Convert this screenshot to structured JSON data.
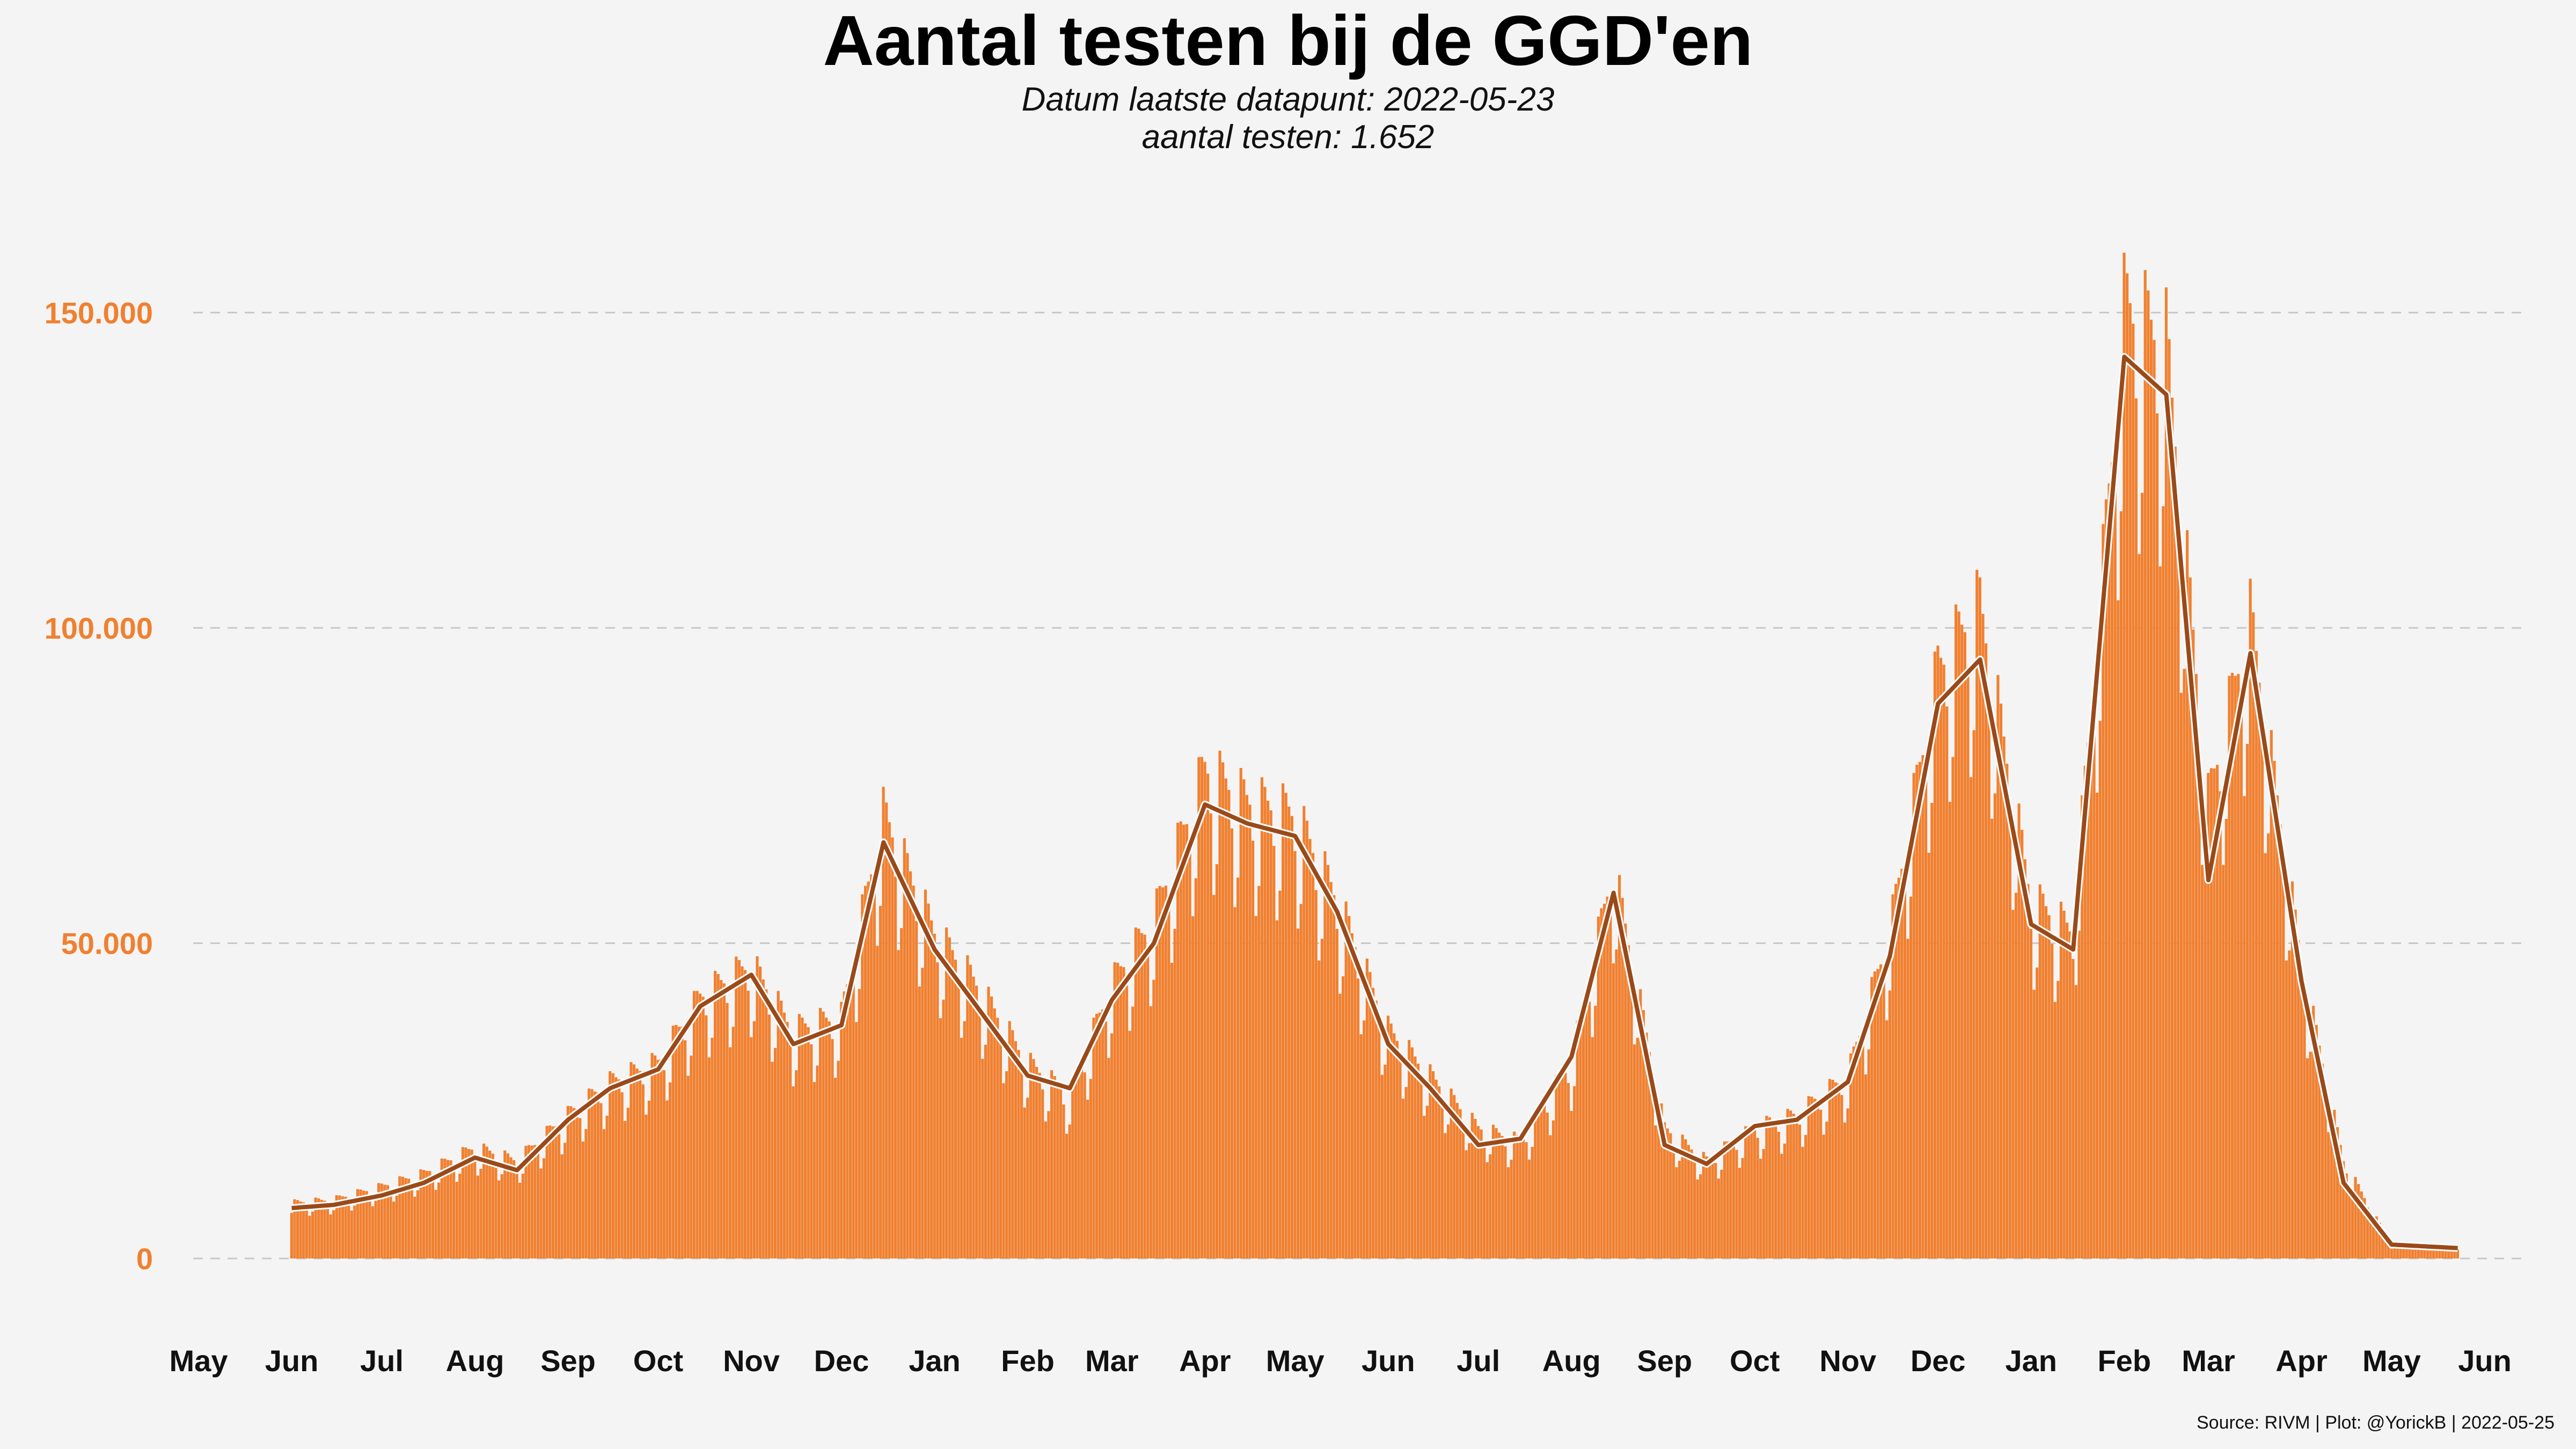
{
  "chart_data": {
    "type": "bar",
    "title": "Aantal testen bij de GGD'en",
    "subtitle_line1": "Datum laatste datapunt: 2022-05-23",
    "subtitle_line2": "aantal testen: 1.652",
    "caption": "Source: RIVM | Plot: @YorickB |  2022-05-25",
    "xlabel": "",
    "ylabel": "",
    "ylim": [
      0,
      160000
    ],
    "xlim": [
      "2020-05-01",
      "2022-06-01"
    ],
    "x_ticks": [
      "May",
      "Jun",
      "Jul",
      "Aug",
      "Sep",
      "Oct",
      "Nov",
      "Dec",
      "Jan",
      "Feb",
      "Mar",
      "Apr",
      "May",
      "Jun",
      "Jul",
      "Aug",
      "Sep",
      "Oct",
      "Nov",
      "Dec",
      "Jan",
      "Feb",
      "Mar",
      "Apr",
      "May",
      "Jun"
    ],
    "y_ticks": [
      "0",
      "50.000",
      "100.000",
      "150.000"
    ],
    "grid": true,
    "legend": "none",
    "bar_color": "#f08030",
    "line_color": "#9a4a1a",
    "series": [
      {
        "kind": "bars",
        "dates": [
          "2020-06-01",
          "2020-06-15",
          "2020-07-01",
          "2020-07-15",
          "2020-08-01",
          "2020-08-15",
          "2020-09-01",
          "2020-09-15",
          "2020-10-01",
          "2020-10-15",
          "2020-11-01",
          "2020-11-15",
          "2020-12-01",
          "2020-12-15",
          "2021-01-01",
          "2021-01-15",
          "2021-02-01",
          "2021-02-15",
          "2021-03-01",
          "2021-03-15",
          "2021-04-01",
          "2021-04-15",
          "2021-05-01",
          "2021-05-15",
          "2021-06-01",
          "2021-06-15",
          "2021-07-01",
          "2021-07-15",
          "2021-08-01",
          "2021-08-15",
          "2021-09-01",
          "2021-09-15",
          "2021-10-01",
          "2021-10-15",
          "2021-11-01",
          "2021-11-15",
          "2021-12-01",
          "2021-12-15",
          "2022-01-01",
          "2022-01-15",
          "2022-02-01",
          "2022-02-15",
          "2022-03-01",
          "2022-03-15",
          "2022-04-01",
          "2022-04-15",
          "2022-05-01",
          "2022-05-23"
        ],
        "values": [
          8500,
          9000,
          11000,
          13000,
          17000,
          15000,
          22000,
          27000,
          30000,
          40000,
          45000,
          35000,
          37000,
          68000,
          50000,
          42000,
          30000,
          25000,
          42000,
          52000,
          75000,
          70000,
          68000,
          55000,
          35000,
          28000,
          20000,
          18000,
          30000,
          60000,
          20000,
          15000,
          20000,
          22000,
          28000,
          50000,
          90000,
          100000,
          55000,
          50000,
          145000,
          140000,
          70000,
          98000,
          45000,
          15000,
          2000,
          1652
        ]
      },
      {
        "kind": "line",
        "name": "",
        "dates": [
          "2020-06-01",
          "2020-06-15",
          "2020-07-01",
          "2020-07-15",
          "2020-08-01",
          "2020-08-15",
          "2020-09-01",
          "2020-09-15",
          "2020-10-01",
          "2020-10-15",
          "2020-11-01",
          "2020-11-15",
          "2020-12-01",
          "2020-12-15",
          "2021-01-01",
          "2021-01-15",
          "2021-02-01",
          "2021-02-15",
          "2021-03-01",
          "2021-03-15",
          "2021-04-01",
          "2021-04-15",
          "2021-05-01",
          "2021-05-15",
          "2021-06-01",
          "2021-06-15",
          "2021-07-01",
          "2021-07-15",
          "2021-08-01",
          "2021-08-15",
          "2021-09-01",
          "2021-09-15",
          "2021-10-01",
          "2021-10-15",
          "2021-11-01",
          "2021-11-15",
          "2021-12-01",
          "2021-12-15",
          "2022-01-01",
          "2022-01-15",
          "2022-02-01",
          "2022-02-15",
          "2022-03-01",
          "2022-03-15",
          "2022-04-01",
          "2022-04-15",
          "2022-05-01",
          "2022-05-23"
        ],
        "values": [
          8000,
          8500,
          10000,
          12000,
          16000,
          14000,
          22000,
          27000,
          30000,
          40000,
          45000,
          34000,
          37000,
          66000,
          49000,
          40000,
          29000,
          27000,
          41000,
          50000,
          72000,
          69000,
          67000,
          55000,
          34000,
          27000,
          18000,
          19000,
          32000,
          58000,
          18000,
          15000,
          21000,
          22000,
          28000,
          48000,
          88000,
          95000,
          53000,
          49000,
          143000,
          137000,
          60000,
          96000,
          44000,
          12000,
          2200,
          1652
        ]
      }
    ]
  }
}
